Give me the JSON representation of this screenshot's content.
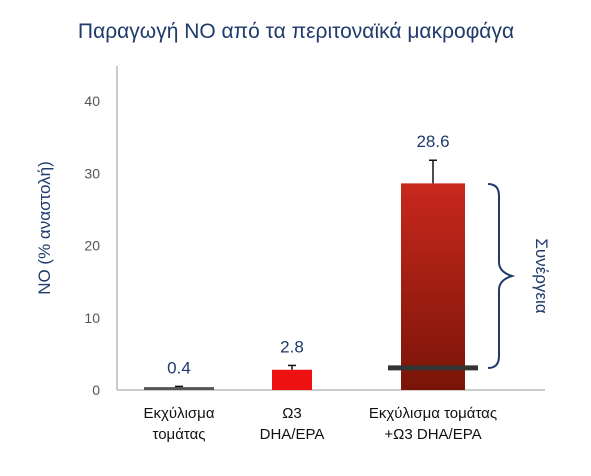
{
  "chart_data": {
    "type": "bar",
    "title": "Παραγωγή NO από τα περιτοναϊκά μακροφάγα",
    "ylabel": "NO (% αναστολή)",
    "xlabel": "",
    "ylim": [
      0,
      40
    ],
    "yticks": [
      "0",
      "10",
      "20",
      "30",
      "40"
    ],
    "categories": [
      [
        "Εκχύλισμα",
        "τομάτας"
      ],
      [
        "Ω3",
        "DHA/EPA"
      ],
      [
        "Εκχύλισμα τομάτας",
        "+Ω3 DHA/EPA"
      ]
    ],
    "values": [
      0.4,
      2.8,
      28.6
    ],
    "error_upper": [
      0.1,
      0.6,
      3.2
    ],
    "data_labels": [
      "0.4",
      "2.8",
      "28.6"
    ],
    "colors": [
      "#555555",
      "#ee1111",
      "#c8281c"
    ],
    "gradient_bottom": "#7a1408",
    "additive_marker_value": 3.2,
    "annotation": "Συνέργεια",
    "grid": false,
    "text_color": "#1f3a6b"
  }
}
